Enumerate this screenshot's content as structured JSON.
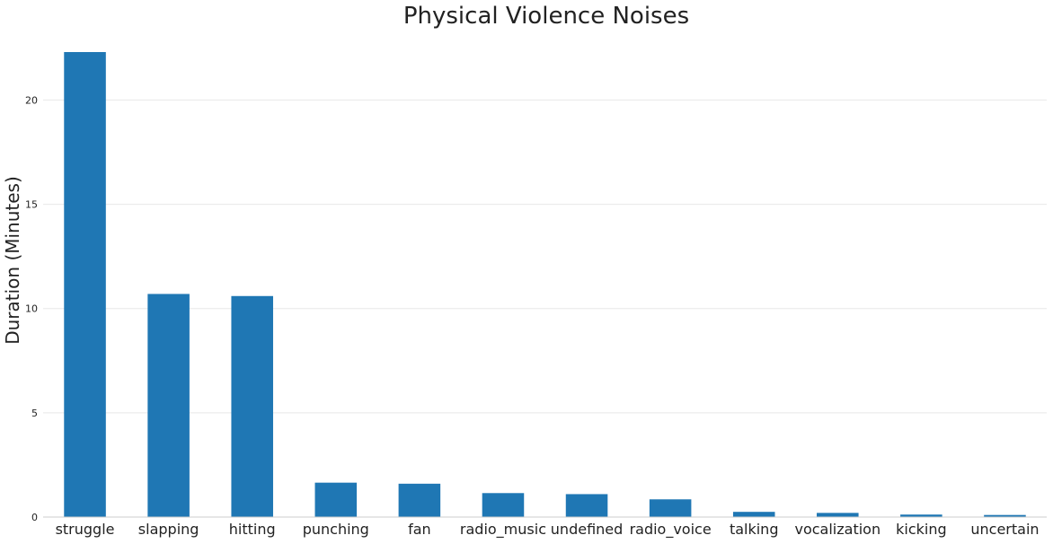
{
  "chart_data": {
    "type": "bar",
    "title": "Physical Violence Noises",
    "xlabel": "",
    "ylabel": "Duration (Minutes)",
    "categories": [
      "struggle",
      "slapping",
      "hitting",
      "punching",
      "fan",
      "radio_music",
      "undefined",
      "radio_voice",
      "talking",
      "vocalization",
      "kicking",
      "uncertain"
    ],
    "values": [
      22.3,
      10.7,
      10.6,
      1.65,
      1.6,
      1.15,
      1.1,
      0.85,
      0.25,
      0.2,
      0.12,
      0.1
    ],
    "ylim": [
      0,
      22.3
    ],
    "yticks": [
      "0",
      "5",
      "10",
      "15",
      "20"
    ],
    "grid": true,
    "colors": {
      "bar": "#1f77b4"
    }
  }
}
